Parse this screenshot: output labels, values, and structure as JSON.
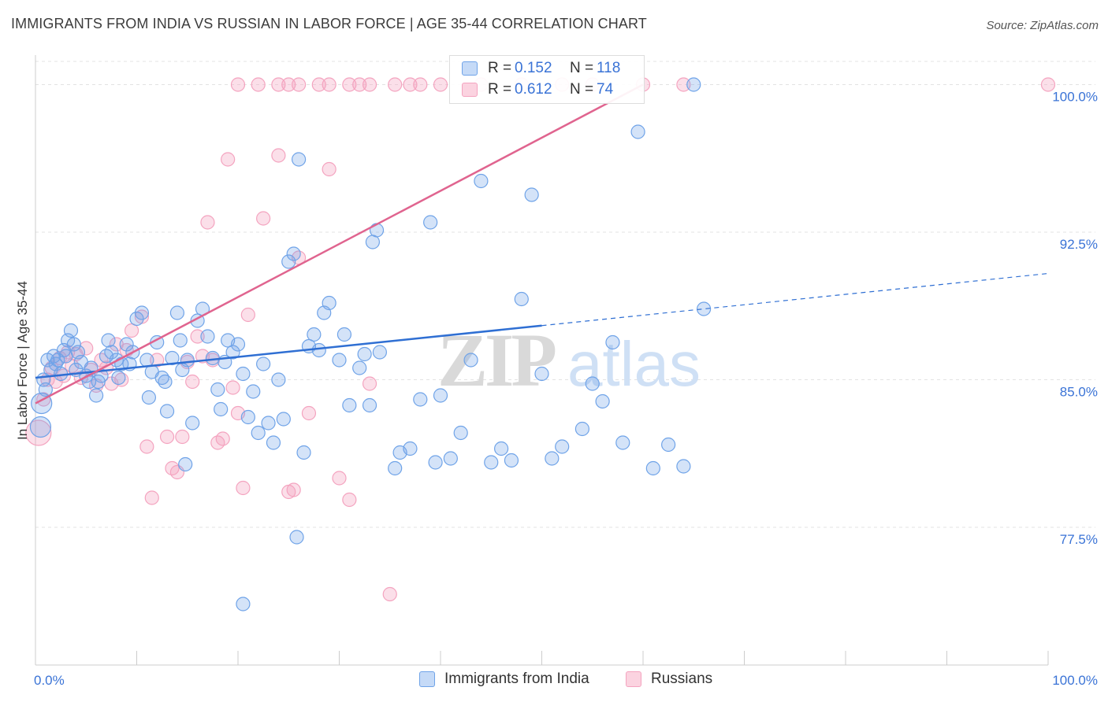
{
  "title": "IMMIGRANTS FROM INDIA VS RUSSIAN IN LABOR FORCE | AGE 35-44 CORRELATION CHART",
  "source": "Source: ZipAtlas.com",
  "watermark": {
    "zip": "ZIP",
    "atlas": "atlas"
  },
  "colors": {
    "india": "#6fa3e8",
    "india_line": "#2f6fd3",
    "russian": "#f4a3bf",
    "russian_line": "#e0648f",
    "tick_label": "#3a73d6",
    "grid": "#e3e3e3"
  },
  "legend": {
    "india": {
      "r_label": "R =",
      "r_value": "0.152",
      "n_label": "N =",
      "n_value": "118"
    },
    "russian": {
      "r_label": "R =",
      "r_value": "0.612",
      "n_label": "N =",
      "n_value": "74"
    }
  },
  "bottom_legend": {
    "india": "Immigrants from India",
    "russian": "Russians"
  },
  "chart_data": {
    "type": "scatter",
    "title": "IMMIGRANTS FROM INDIA VS RUSSIAN IN LABOR FORCE | AGE 35-44 CORRELATION CHART",
    "xlabel": "",
    "ylabel": "In Labor Force | Age 35-44",
    "xlim": [
      0,
      100
    ],
    "ylim": [
      70.5,
      101.5
    ],
    "x_tick_labels": [
      "0.0%",
      "100.0%"
    ],
    "y_ticks": [
      77.5,
      85.0,
      92.5,
      100.0
    ],
    "y_tick_labels": [
      "77.5%",
      "85.0%",
      "92.5%",
      "100.0%"
    ],
    "series": [
      {
        "name": "Immigrants from India",
        "r": 0.152,
        "n": 118,
        "trend": {
          "x0": 0,
          "y0": 85.1,
          "x1": 100,
          "y1": 90.4,
          "solid_until": 50
        },
        "points": [
          [
            0.5,
            82.6
          ],
          [
            0.6,
            83.8
          ],
          [
            0.8,
            85.0
          ],
          [
            1.0,
            84.5
          ],
          [
            1.2,
            86.0
          ],
          [
            1.5,
            85.5
          ],
          [
            1.8,
            86.2
          ],
          [
            2.0,
            85.8
          ],
          [
            2.2,
            86.0
          ],
          [
            2.5,
            85.3
          ],
          [
            2.8,
            86.5
          ],
          [
            3.0,
            86.2
          ],
          [
            3.2,
            87.0
          ],
          [
            3.5,
            87.5
          ],
          [
            3.8,
            86.8
          ],
          [
            4.0,
            85.5
          ],
          [
            4.2,
            86.4
          ],
          [
            4.5,
            85.9
          ],
          [
            5.0,
            85.2
          ],
          [
            5.3,
            84.9
          ],
          [
            5.5,
            85.6
          ],
          [
            6.0,
            84.2
          ],
          [
            6.2,
            84.9
          ],
          [
            6.5,
            85.2
          ],
          [
            7.0,
            86.2
          ],
          [
            7.2,
            87.0
          ],
          [
            7.5,
            86.4
          ],
          [
            8.0,
            86.0
          ],
          [
            8.2,
            85.1
          ],
          [
            8.5,
            85.8
          ],
          [
            9.0,
            86.8
          ],
          [
            9.3,
            85.8
          ],
          [
            9.6,
            86.4
          ],
          [
            10.0,
            88.1
          ],
          [
            10.5,
            88.4
          ],
          [
            11.0,
            86.0
          ],
          [
            11.2,
            84.1
          ],
          [
            11.5,
            85.4
          ],
          [
            12.0,
            86.9
          ],
          [
            12.5,
            85.1
          ],
          [
            12.8,
            84.9
          ],
          [
            13.0,
            83.4
          ],
          [
            13.5,
            86.1
          ],
          [
            14.0,
            88.4
          ],
          [
            14.3,
            87.0
          ],
          [
            14.5,
            85.5
          ],
          [
            15.0,
            86.0
          ],
          [
            15.5,
            82.8
          ],
          [
            16.0,
            88.0
          ],
          [
            16.5,
            88.6
          ],
          [
            17.0,
            87.2
          ],
          [
            17.5,
            86.1
          ],
          [
            18.0,
            84.5
          ],
          [
            18.3,
            83.5
          ],
          [
            18.7,
            85.9
          ],
          [
            19.0,
            87.0
          ],
          [
            19.5,
            86.4
          ],
          [
            20.0,
            86.8
          ],
          [
            20.5,
            85.3
          ],
          [
            21.0,
            83.1
          ],
          [
            21.5,
            84.4
          ],
          [
            22.0,
            82.3
          ],
          [
            22.5,
            85.8
          ],
          [
            23.0,
            82.8
          ],
          [
            23.5,
            81.8
          ],
          [
            24.0,
            85.0
          ],
          [
            24.5,
            83.0
          ],
          [
            25.0,
            91.0
          ],
          [
            25.5,
            91.4
          ],
          [
            26.0,
            96.2
          ],
          [
            26.5,
            81.3
          ],
          [
            27.0,
            86.7
          ],
          [
            27.5,
            87.3
          ],
          [
            28.0,
            86.5
          ],
          [
            28.5,
            88.4
          ],
          [
            29.0,
            88.9
          ],
          [
            30.0,
            86.0
          ],
          [
            30.5,
            87.3
          ],
          [
            31.0,
            83.7
          ],
          [
            32.0,
            85.6
          ],
          [
            32.5,
            86.3
          ],
          [
            33.0,
            83.7
          ],
          [
            33.3,
            92.0
          ],
          [
            33.7,
            92.6
          ],
          [
            34.0,
            86.4
          ],
          [
            35.5,
            80.5
          ],
          [
            36.0,
            81.3
          ],
          [
            37.0,
            81.5
          ],
          [
            38.0,
            84.0
          ],
          [
            39.0,
            93.0
          ],
          [
            39.5,
            80.8
          ],
          [
            40.0,
            84.2
          ],
          [
            41.0,
            81.0
          ],
          [
            42.0,
            82.3
          ],
          [
            43.0,
            86.0
          ],
          [
            44.0,
            95.1
          ],
          [
            45.0,
            80.8
          ],
          [
            46.0,
            81.5
          ],
          [
            47.0,
            80.9
          ],
          [
            48.0,
            89.1
          ],
          [
            49.0,
            94.4
          ],
          [
            50.0,
            85.3
          ],
          [
            51.0,
            81.0
          ],
          [
            52.0,
            81.6
          ],
          [
            54.0,
            82.5
          ],
          [
            55.0,
            84.8
          ],
          [
            56.0,
            83.9
          ],
          [
            57.0,
            86.9
          ],
          [
            58.0,
            81.8
          ],
          [
            59.5,
            97.6
          ],
          [
            61.0,
            80.5
          ],
          [
            62.5,
            81.7
          ],
          [
            64.0,
            80.6
          ],
          [
            65.0,
            100.0
          ],
          [
            66.0,
            88.6
          ],
          [
            14.8,
            80.7
          ],
          [
            20.5,
            73.6
          ],
          [
            25.8,
            77.0
          ]
        ]
      },
      {
        "name": "Russians",
        "r": 0.612,
        "n": 74,
        "trend": {
          "x0": 0,
          "y0": 83.8,
          "x1": 60,
          "y1": 100.0
        },
        "points": [
          [
            0.3,
            82.3
          ],
          [
            0.8,
            84.0
          ],
          [
            1.2,
            85.0
          ],
          [
            1.6,
            85.6
          ],
          [
            2.0,
            84.9
          ],
          [
            2.4,
            86.1
          ],
          [
            2.8,
            85.2
          ],
          [
            3.2,
            86.4
          ],
          [
            3.6,
            85.7
          ],
          [
            4.0,
            86.3
          ],
          [
            4.5,
            85.1
          ],
          [
            5.0,
            86.6
          ],
          [
            5.5,
            85.5
          ],
          [
            6.0,
            84.7
          ],
          [
            6.5,
            86.0
          ],
          [
            7.0,
            85.6
          ],
          [
            7.5,
            84.8
          ],
          [
            8.0,
            86.8
          ],
          [
            8.5,
            85.0
          ],
          [
            9.0,
            86.5
          ],
          [
            9.5,
            87.5
          ],
          [
            10.5,
            88.2
          ],
          [
            11.0,
            81.6
          ],
          [
            11.5,
            79.0
          ],
          [
            12.0,
            86.0
          ],
          [
            13.0,
            82.1
          ],
          [
            13.5,
            80.5
          ],
          [
            14.0,
            80.3
          ],
          [
            14.5,
            82.1
          ],
          [
            15.0,
            85.9
          ],
          [
            15.5,
            84.9
          ],
          [
            16.0,
            87.2
          ],
          [
            16.5,
            86.2
          ],
          [
            17.0,
            93.0
          ],
          [
            17.5,
            86.0
          ],
          [
            18.0,
            81.8
          ],
          [
            18.5,
            82.0
          ],
          [
            19.0,
            96.2
          ],
          [
            19.5,
            84.6
          ],
          [
            20.0,
            83.3
          ],
          [
            20.5,
            79.5
          ],
          [
            21.0,
            88.3
          ],
          [
            22.5,
            93.2
          ],
          [
            24.0,
            96.4
          ],
          [
            25.0,
            79.3
          ],
          [
            25.5,
            79.4
          ],
          [
            26.0,
            91.2
          ],
          [
            27.0,
            83.3
          ],
          [
            29.0,
            95.7
          ],
          [
            30.0,
            80.0
          ],
          [
            31.0,
            78.9
          ],
          [
            33.0,
            84.8
          ],
          [
            35.0,
            74.1
          ],
          [
            20.0,
            100.0
          ],
          [
            22.0,
            100.0
          ],
          [
            24.0,
            100.0
          ],
          [
            25.0,
            100.0
          ],
          [
            26.0,
            100.0
          ],
          [
            28.0,
            100.0
          ],
          [
            29.0,
            100.0
          ],
          [
            31.0,
            100.0
          ],
          [
            32.0,
            100.0
          ],
          [
            33.0,
            100.0
          ],
          [
            35.5,
            100.0
          ],
          [
            37.0,
            100.0
          ],
          [
            38.0,
            100.0
          ],
          [
            40.0,
            100.0
          ],
          [
            44.0,
            100.0
          ],
          [
            48.0,
            100.0
          ],
          [
            52.0,
            100.0
          ],
          [
            55.0,
            100.0
          ],
          [
            60.0,
            100.0
          ],
          [
            64.0,
            100.0
          ],
          [
            100.0,
            100.0
          ]
        ]
      }
    ]
  }
}
